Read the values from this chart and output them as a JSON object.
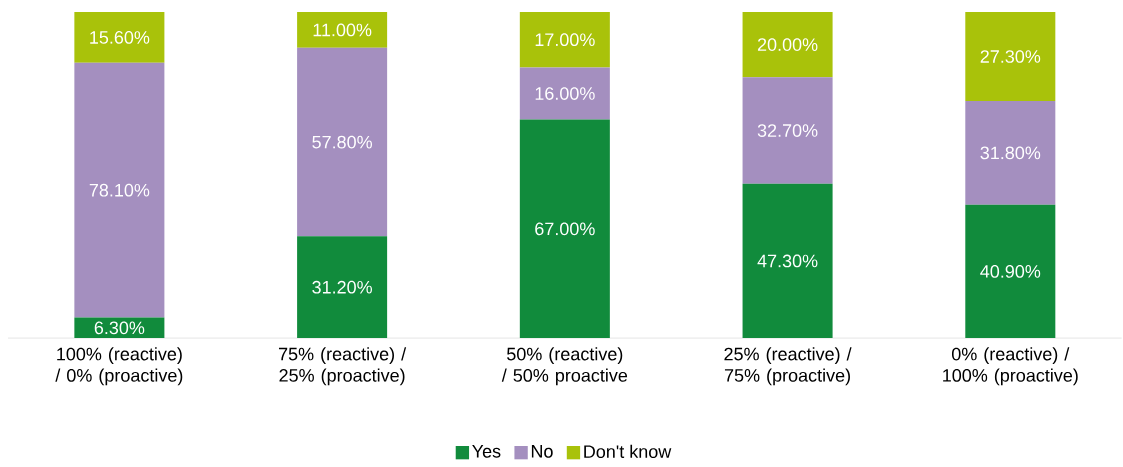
{
  "chart_data": {
    "type": "bar",
    "stacked": true,
    "categories": [
      "100% (reactive) / 0% (proactive)",
      "75% (reactive) / 25% (proactive)",
      "50% (reactive) / 50% proactive",
      "25% (reactive) / 75% (proactive)",
      "0% (reactive) / 100% (proactive)"
    ],
    "legend": "bottom",
    "series": [
      {
        "name": "Yes",
        "color": "#118b3c",
        "values": [
          6.3,
          31.2,
          67,
          47.3,
          40.9
        ],
        "value_labels": [
          "6.30%",
          "31.20%",
          "67.00%",
          "47.30%",
          "40.90%"
        ]
      },
      {
        "name": "No",
        "color": "#a48fbf",
        "values": [
          78.1,
          57.8,
          16,
          32.7,
          31.8
        ],
        "value_labels": [
          "78.10%",
          "57.80%",
          "16.00%",
          "32.70%",
          "31.80%"
        ]
      },
      {
        "name": "Don't know",
        "color": "#a9c20a",
        "values": [
          15.6,
          11,
          17,
          20,
          27.3
        ],
        "value_labels": [
          "15.60%",
          "11.00%",
          "17.00%",
          "20.00%",
          "27.30%"
        ]
      }
    ]
  }
}
